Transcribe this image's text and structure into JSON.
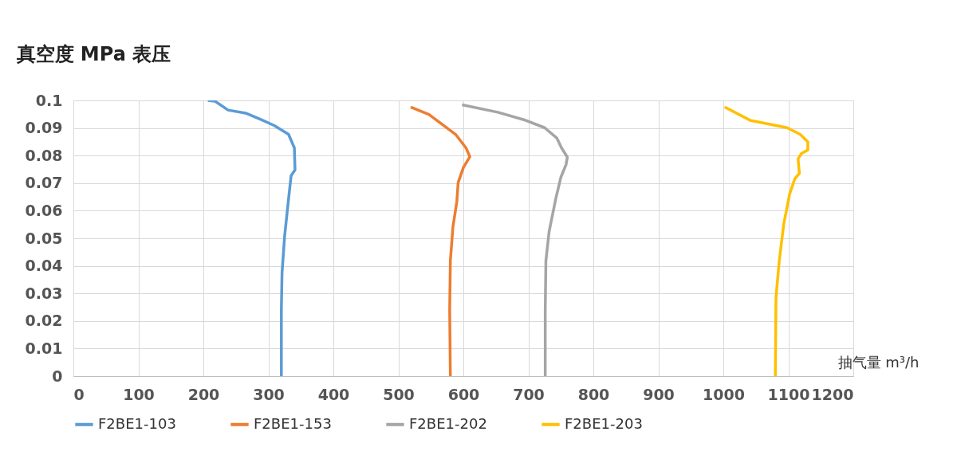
{
  "chart_data": {
    "type": "line",
    "ylabel": "真空度 MPa 表压",
    "xlabel": "抽气量 m³/h",
    "xlim": [
      0,
      1200
    ],
    "xticks": [
      0,
      100,
      200,
      300,
      400,
      500,
      600,
      700,
      800,
      900,
      1000,
      1100,
      1200
    ],
    "ylim": [
      0,
      0.1
    ],
    "yticks": [
      0,
      0.01,
      0.02,
      0.03,
      0.04,
      0.05,
      0.06,
      0.07,
      0.08,
      0.09,
      0.1
    ],
    "grid": true,
    "legend": "bottom",
    "marker": "none",
    "line_style": "solid",
    "series": [
      {
        "name": "F2BE1-103",
        "color": "#5b9bd5",
        "x": [
          207,
          218,
          238,
          265,
          289,
          309,
          331,
          340,
          341,
          335,
          331,
          325,
          321,
          320,
          320
        ],
        "values": [
          0.1,
          0.0997,
          0.0965,
          0.0954,
          0.093,
          0.0909,
          0.0877,
          0.0828,
          0.0748,
          0.0727,
          0.0641,
          0.0507,
          0.0373,
          0.0239,
          0
        ]
      },
      {
        "name": "F2BE1-153",
        "color": "#ed7d31",
        "x": [
          519,
          547,
          588,
          604,
          610,
          600,
          592,
          590,
          584,
          580,
          579,
          580
        ],
        "values": [
          0.0976,
          0.0949,
          0.0877,
          0.0828,
          0.0796,
          0.0756,
          0.0702,
          0.0633,
          0.0542,
          0.0418,
          0.0239,
          0
        ]
      },
      {
        "name": "F2BE1-202",
        "color": "#a5a5a5",
        "x": [
          598,
          653,
          693,
          725,
          744,
          751,
          760,
          758,
          750,
          742,
          732,
          727,
          726,
          726
        ],
        "values": [
          0.0984,
          0.0957,
          0.093,
          0.0901,
          0.0863,
          0.0828,
          0.0794,
          0.0767,
          0.0721,
          0.0641,
          0.0525,
          0.0418,
          0.0239,
          0
        ]
      },
      {
        "name": "F2BE1-203",
        "color": "#ffc000",
        "x": [
          1002,
          1041,
          1098,
          1118,
          1130,
          1130,
          1120,
          1115,
          1117,
          1110,
          1102,
          1093,
          1086,
          1081,
          1080
        ],
        "values": [
          0.0976,
          0.0928,
          0.0901,
          0.0877,
          0.085,
          0.082,
          0.0807,
          0.0788,
          0.0735,
          0.0716,
          0.066,
          0.0552,
          0.0418,
          0.0284,
          0
        ]
      }
    ]
  }
}
